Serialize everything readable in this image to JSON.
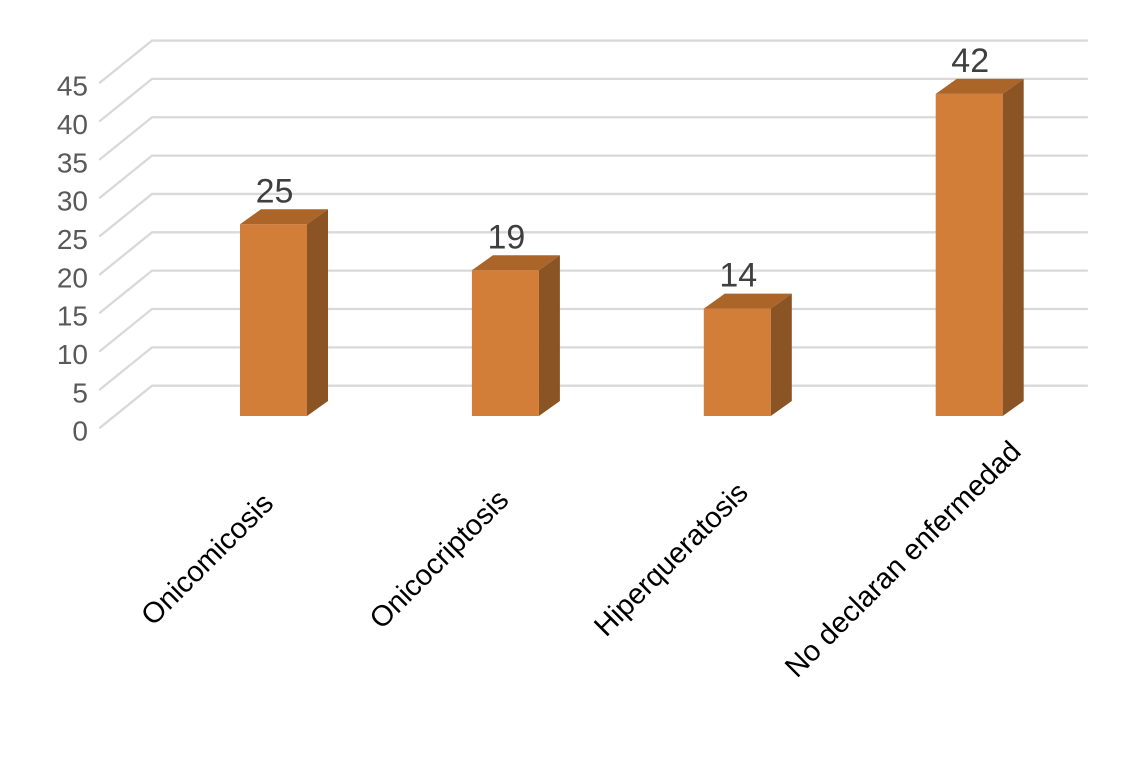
{
  "chart_data": {
    "type": "bar",
    "style": "3d-column",
    "title": "",
    "xlabel": "",
    "ylabel": "",
    "categories": [
      "Onicomicosis",
      "Onicocriptosis",
      "Hiperqueratosis",
      "No declaran enfermedad"
    ],
    "values": [
      25,
      19,
      14,
      42
    ],
    "data_labels": [
      "25",
      "19",
      "14",
      "42"
    ],
    "ylim": [
      0,
      45
    ],
    "ytick_step": 5,
    "yticks": [
      0,
      5,
      10,
      15,
      20,
      25,
      30,
      35,
      40,
      45
    ],
    "grid": true,
    "legend": false,
    "category_label_rotation_deg": 45,
    "colors": {
      "bar_front": "#D27D38",
      "bar_top": "#AC6529",
      "bar_side": "#8B5424",
      "gridline": "#D9D9D9",
      "axis_tick_text": "#595959",
      "value_label_text": "#3F3F3F",
      "category_text": "#000000",
      "background": "#FFFFFF"
    }
  }
}
